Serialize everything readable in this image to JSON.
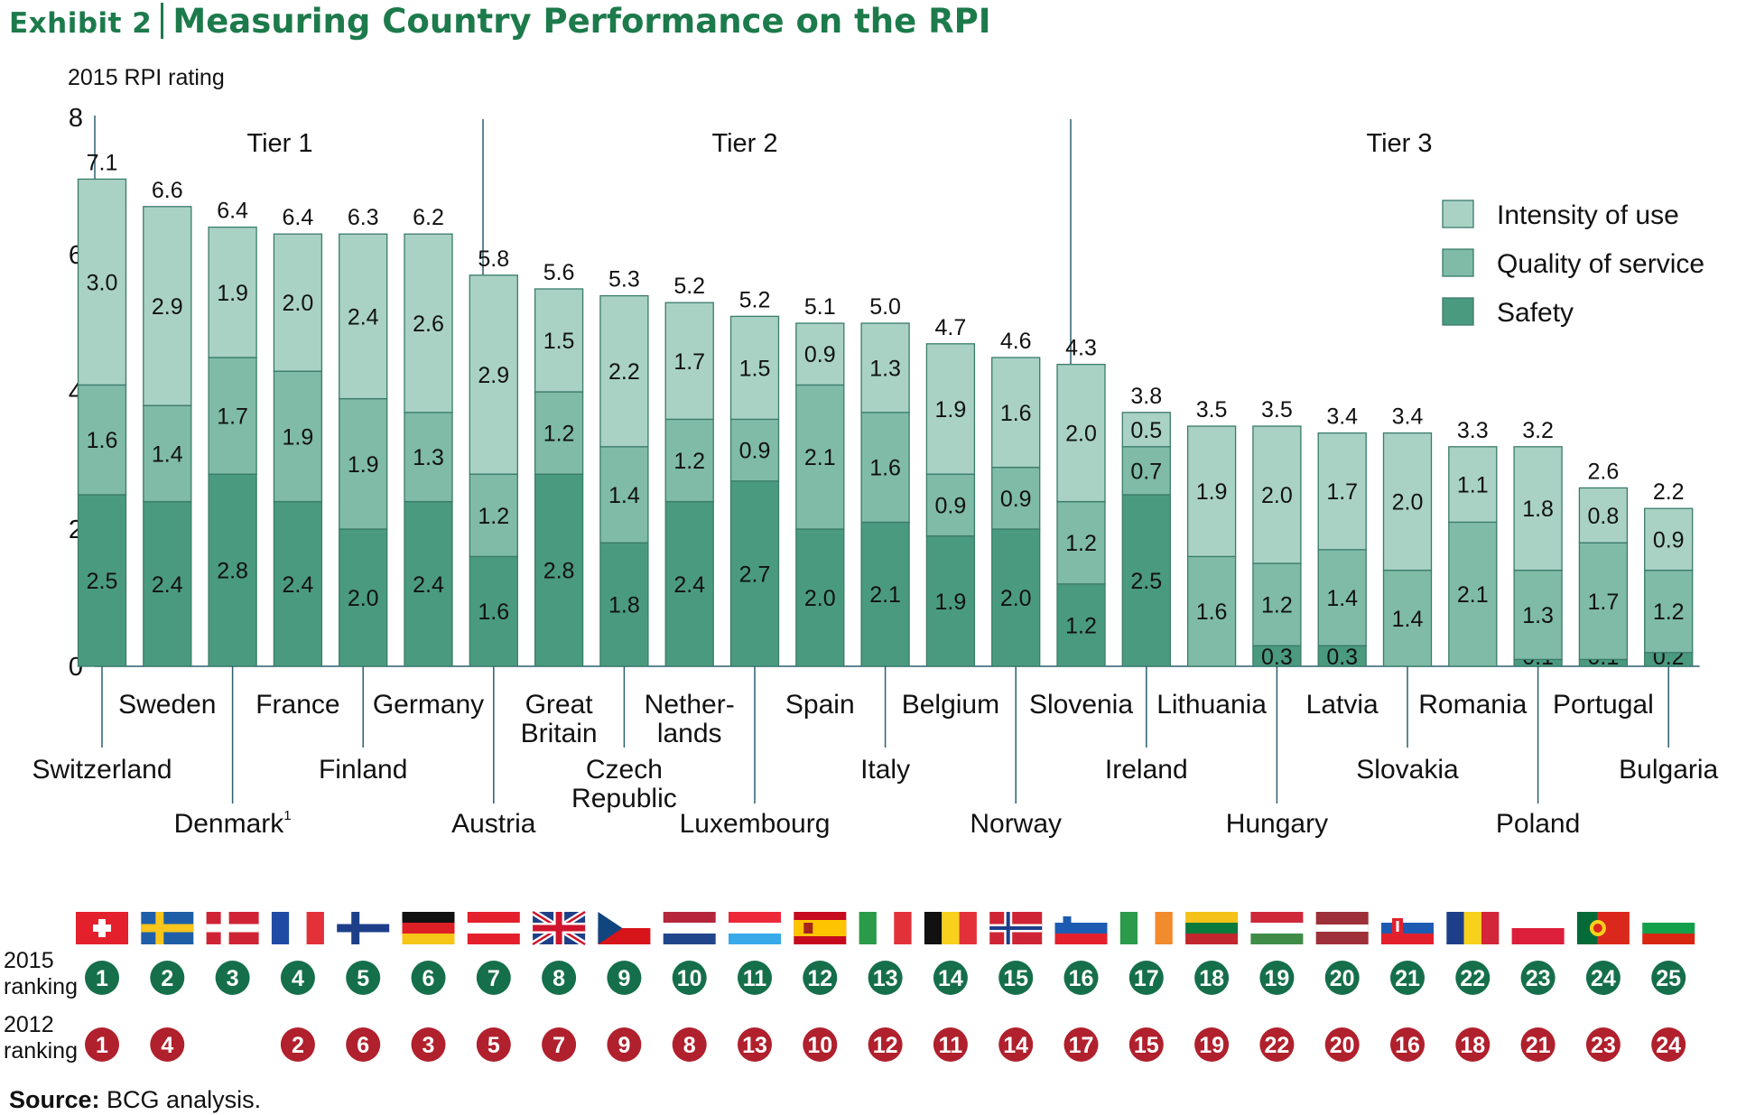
{
  "title": {
    "exhibit": "Exhibit 2",
    "main": "Measuring Country Performance on the RPI"
  },
  "source": {
    "label": "Source:",
    "text": "BCG analysis."
  },
  "colors": {
    "intensity": "#a9d2c5",
    "quality": "#7fbba6",
    "safety": "#4a9a7f",
    "bar_outline": "#3a7b6a",
    "rank_2015": "#156f4a",
    "rank_2012": "#b0202d",
    "title": "#1c7a4b"
  },
  "chart_data": {
    "type": "bar",
    "stacked": true,
    "ylabel": "2015 RPI rating",
    "ylim": [
      0,
      8
    ],
    "yticks": [
      "0",
      "2",
      "4",
      "6",
      "8"
    ],
    "tiers": [
      "Tier 1",
      "Tier 2",
      "Tier 3"
    ],
    "legend_position": "top-right",
    "categories": [
      "Switzerland",
      "Sweden",
      "Denmark",
      "France",
      "Finland",
      "Germany",
      "Austria",
      "Great Britain",
      "Czech Republic",
      "Netherlands",
      "Luxembourg",
      "Spain",
      "Italy",
      "Belgium",
      "Norway",
      "Slovenia",
      "Ireland",
      "Lithuania",
      "Hungary",
      "Latvia",
      "Slovakia",
      "Romania",
      "Poland",
      "Portugal",
      "Bulgaria"
    ],
    "totals": [
      "7.1",
      "6.6",
      "6.4",
      "6.4",
      "6.3",
      "6.2",
      "5.8",
      "5.6",
      "5.3",
      "5.2",
      "5.2",
      "5.1",
      "5.0",
      "4.7",
      "4.6",
      "4.3",
      "3.8",
      "3.5",
      "3.5",
      "3.4",
      "3.4",
      "3.3",
      "3.2",
      "2.6",
      "2.2"
    ],
    "series": [
      {
        "name": "Safety",
        "values": [
          2.5,
          2.4,
          2.8,
          2.4,
          2.0,
          2.4,
          1.6,
          2.8,
          1.8,
          2.4,
          2.7,
          2.0,
          2.1,
          1.9,
          2.0,
          1.2,
          2.5,
          0.0,
          0.3,
          0.3,
          0.0,
          0.0,
          0.1,
          0.1,
          0.2
        ],
        "labels": [
          "2.5",
          "2.4",
          "2.8",
          "2.4",
          "2.0",
          "2.4",
          "1.6",
          "2.8",
          "1.8",
          "2.4",
          "2.7",
          "2.0",
          "2.1",
          "1.9",
          "2.0",
          "1.2",
          "2.5",
          "0.0",
          "0.3",
          "0.3",
          "0.0",
          "0.0",
          "0.1",
          "0.1",
          "0.2"
        ]
      },
      {
        "name": "Quality of service",
        "values": [
          1.6,
          1.4,
          1.7,
          1.9,
          1.9,
          1.3,
          1.2,
          1.2,
          1.4,
          1.2,
          0.9,
          2.1,
          1.6,
          0.9,
          0.9,
          1.2,
          0.7,
          1.6,
          1.2,
          1.4,
          1.4,
          2.1,
          1.3,
          1.7,
          1.2
        ],
        "labels": [
          "1.6",
          "1.4",
          "1.7",
          "1.9",
          "1.9",
          "1.3",
          "1.2",
          "1.2",
          "1.4",
          "1.2",
          "0.9",
          "2.1",
          "1.6",
          "0.9",
          "0.9",
          "1.2",
          "0.7",
          "1.6",
          "1.2",
          "1.4",
          "1.4",
          "2.1",
          "1.3",
          "1.7",
          "1.2"
        ]
      },
      {
        "name": "Intensity of use",
        "values": [
          3.0,
          2.9,
          1.9,
          2.0,
          2.4,
          2.6,
          2.9,
          1.5,
          2.2,
          1.7,
          1.5,
          0.9,
          1.3,
          1.9,
          1.6,
          2.0,
          0.5,
          1.9,
          2.0,
          1.7,
          2.0,
          1.1,
          1.8,
          0.8,
          0.9
        ],
        "labels": [
          "3.0",
          "2.9",
          "1.9",
          "2.0",
          "2.4",
          "2.6",
          "2.9",
          "1.5",
          "2.2",
          "1.7",
          "1.5",
          "0.9",
          "1.3",
          "1.9",
          "1.6",
          "2.0",
          "0.5",
          "1.9",
          "2.0",
          "1.7",
          "2.0",
          "1.1",
          "1.8",
          "0.8",
          "0.9"
        ]
      }
    ],
    "country_labels": [
      {
        "lines": [
          "Switzerland"
        ],
        "pos": "low"
      },
      {
        "lines": [
          "Sweden"
        ],
        "pos": "high"
      },
      {
        "lines": [
          "Denmark"
        ],
        "sup": "1",
        "pos": "lowest"
      },
      {
        "lines": [
          "France"
        ],
        "pos": "high"
      },
      {
        "lines": [
          "Finland"
        ],
        "pos": "low"
      },
      {
        "lines": [
          "Germany"
        ],
        "pos": "high"
      },
      {
        "lines": [
          "Austria"
        ],
        "pos": "lowest"
      },
      {
        "lines": [
          "Great",
          "Britain"
        ],
        "pos": "high"
      },
      {
        "lines": [
          "Czech",
          "Republic"
        ],
        "pos": "low"
      },
      {
        "lines": [
          "Nether-",
          "lands"
        ],
        "pos": "high"
      },
      {
        "lines": [
          "Luxembourg"
        ],
        "pos": "lowest"
      },
      {
        "lines": [
          "Spain"
        ],
        "pos": "high"
      },
      {
        "lines": [
          "Italy"
        ],
        "pos": "low"
      },
      {
        "lines": [
          "Belgium"
        ],
        "pos": "high"
      },
      {
        "lines": [
          "Norway"
        ],
        "pos": "lowest"
      },
      {
        "lines": [
          "Slovenia"
        ],
        "pos": "high"
      },
      {
        "lines": [
          "Ireland"
        ],
        "pos": "low"
      },
      {
        "lines": [
          "Lithuania"
        ],
        "pos": "high"
      },
      {
        "lines": [
          "Hungary"
        ],
        "pos": "lowest"
      },
      {
        "lines": [
          "Latvia"
        ],
        "pos": "high"
      },
      {
        "lines": [
          "Slovakia"
        ],
        "pos": "low"
      },
      {
        "lines": [
          "Romania"
        ],
        "pos": "high"
      },
      {
        "lines": [
          "Poland"
        ],
        "pos": "lowest"
      },
      {
        "lines": [
          "Portugal"
        ],
        "pos": "high"
      },
      {
        "lines": [
          "Bulgaria"
        ],
        "pos": "low"
      }
    ],
    "flags": [
      "switzerland",
      "sweden",
      "denmark",
      "france",
      "finland",
      "germany",
      "austria",
      "great-britain",
      "czech-republic",
      "netherlands",
      "luxembourg",
      "spain",
      "italy",
      "belgium",
      "norway",
      "slovenia",
      "ireland",
      "lithuania",
      "hungary",
      "latvia",
      "slovakia",
      "romania",
      "poland",
      "portugal",
      "bulgaria"
    ],
    "ranking_labels": {
      "r2015": [
        "2015",
        "ranking"
      ],
      "r2012": [
        "2012",
        "ranking"
      ]
    },
    "rank_2015": [
      "1",
      "2",
      "3",
      "4",
      "5",
      "6",
      "7",
      "8",
      "9",
      "10",
      "11",
      "12",
      "13",
      "14",
      "15",
      "16",
      "17",
      "18",
      "19",
      "20",
      "21",
      "22",
      "23",
      "24",
      "25"
    ],
    "rank_2012": [
      "1",
      "4",
      "",
      "2",
      "6",
      "3",
      "5",
      "7",
      "9",
      "8",
      "13",
      "10",
      "12",
      "11",
      "14",
      "17",
      "15",
      "19",
      "22",
      "20",
      "16",
      "18",
      "21",
      "23",
      "24"
    ]
  }
}
